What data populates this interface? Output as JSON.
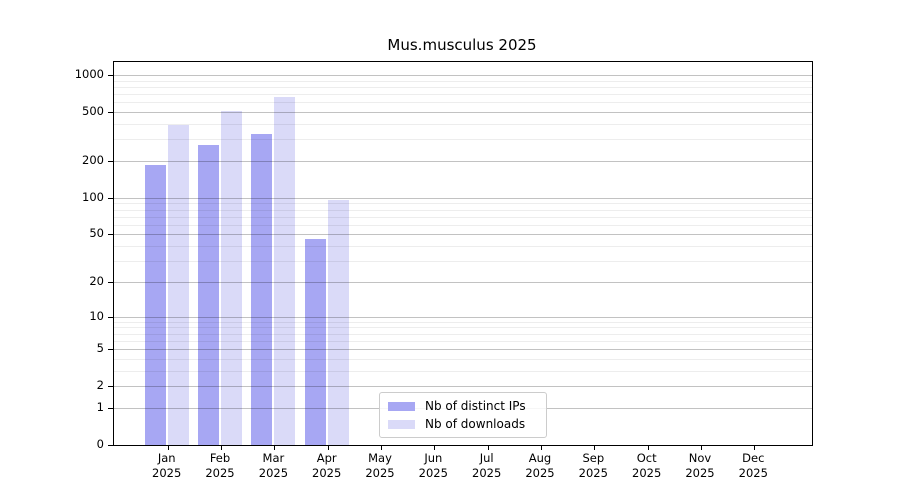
{
  "chart_data": {
    "type": "bar",
    "title": "Mus.musculus 2025",
    "categories": [
      "Jan",
      "Feb",
      "Mar",
      "Apr",
      "May",
      "Jun",
      "Jul",
      "Aug",
      "Sep",
      "Oct",
      "Nov",
      "Dec"
    ],
    "category_year": "2025",
    "series": [
      {
        "name": "Nb of distinct IPs",
        "color": "#a7a7f3",
        "values": [
          185,
          270,
          330,
          46,
          0,
          0,
          0,
          0,
          0,
          0,
          0,
          0
        ]
      },
      {
        "name": "Nb of downloads",
        "color": "#dadaf8",
        "values": [
          395,
          510,
          660,
          97,
          0,
          0,
          0,
          0,
          0,
          0,
          0,
          0
        ]
      }
    ],
    "y_axis": {
      "scale": "log1p",
      "max": 1000,
      "major_ticks": [
        0,
        1,
        2,
        5,
        10,
        20,
        50,
        100,
        200,
        500,
        1000
      ],
      "minor_ticks": [
        3,
        4,
        6,
        7,
        8,
        9,
        30,
        40,
        60,
        70,
        80,
        90,
        300,
        400,
        600,
        700,
        800,
        900
      ]
    },
    "grid": true,
    "legend_position": "bottom-center",
    "colors": {
      "major_grid": "rgba(0,0,0,0.24)",
      "minor_grid": "rgba(0,0,0,0.07)",
      "axis": "#000000",
      "background": "#ffffff"
    }
  }
}
